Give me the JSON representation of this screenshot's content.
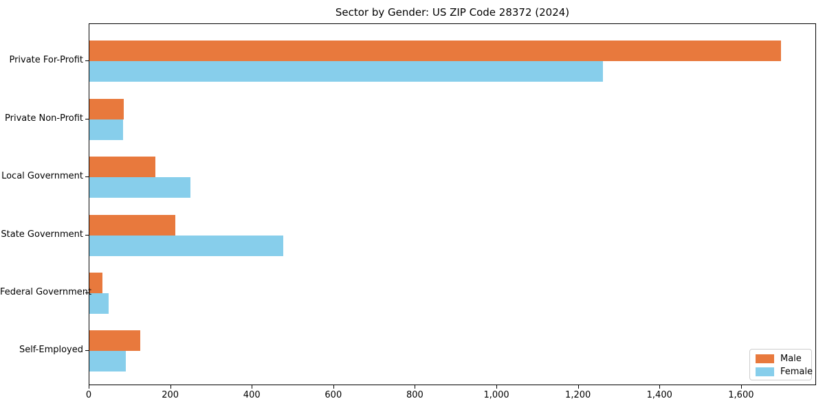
{
  "chart_data": {
    "type": "bar",
    "orientation": "horizontal",
    "title": "Sector by Gender: US ZIP Code 28372 (2024)",
    "categories": [
      "Private For-Profit",
      "Private Non-Profit",
      "Local Government",
      "State Government",
      "Federal Government",
      "Self-Employed"
    ],
    "series": [
      {
        "name": "Male",
        "color": "#e8793d",
        "values": [
          1696,
          84,
          162,
          211,
          32,
          124
        ]
      },
      {
        "name": "Female",
        "color": "#87ceeb",
        "values": [
          1259,
          82,
          248,
          475,
          48,
          89
        ]
      }
    ],
    "xlabel": "",
    "ylabel": "",
    "xlim": [
      0,
      1784
    ],
    "x_tick_values": [
      0,
      200,
      400,
      600,
      800,
      1000,
      1200,
      1400,
      1600
    ],
    "x_tick_labels": [
      "0",
      "200",
      "400",
      "600",
      "800",
      "1,000",
      "1,200",
      "1,400",
      "1,600"
    ],
    "grid": false,
    "legend": {
      "position": "lower right",
      "entries": [
        "Male",
        "Female"
      ]
    }
  },
  "colors": {
    "male": "#e8793d",
    "female": "#87ceeb",
    "spine": "#000000",
    "legend_border": "#cccccc",
    "background": "#ffffff"
  }
}
